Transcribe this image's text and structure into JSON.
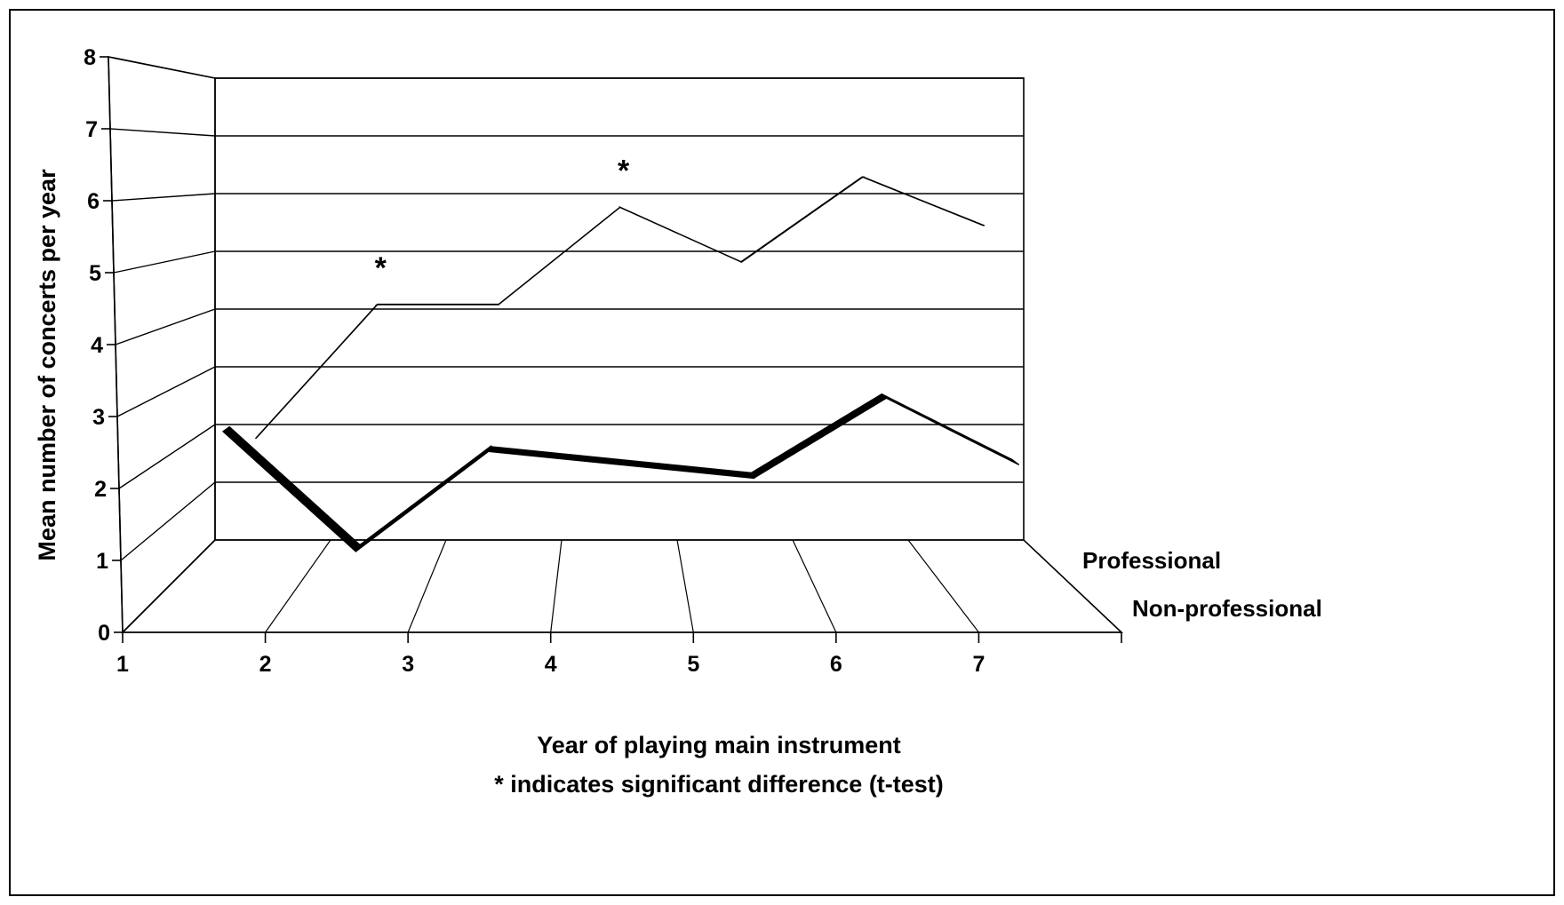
{
  "chart_data": {
    "type": "line",
    "style": "3d",
    "x": [
      1,
      2,
      3,
      4,
      5,
      6,
      7
    ],
    "series": [
      {
        "name": "Professional",
        "values": [
          2.0,
          4.2,
          4.2,
          5.8,
          4.9,
          6.3,
          5.5
        ],
        "color": "#ffffff"
      },
      {
        "name": "Non-professional",
        "values": [
          2.5,
          0.7,
          2.2,
          2.0,
          1.8,
          3.0,
          2.0
        ],
        "color": "#000000"
      }
    ],
    "xlabel": "Year of playing main instrument",
    "ylabel": "Mean number of concerts per year",
    "note": "* indicates significant difference (t-test)",
    "annotations": [
      {
        "series": "Professional",
        "x": 2,
        "text": "*"
      },
      {
        "series": "Professional",
        "x": 4,
        "text": "*"
      }
    ],
    "xticks": [
      "1",
      "2",
      "3",
      "4",
      "5",
      "6",
      "7"
    ],
    "yticks": [
      "0",
      "1",
      "2",
      "3",
      "4",
      "5",
      "6",
      "7",
      "8"
    ],
    "ylim": [
      0,
      8
    ],
    "grid": true,
    "legend": "right"
  }
}
